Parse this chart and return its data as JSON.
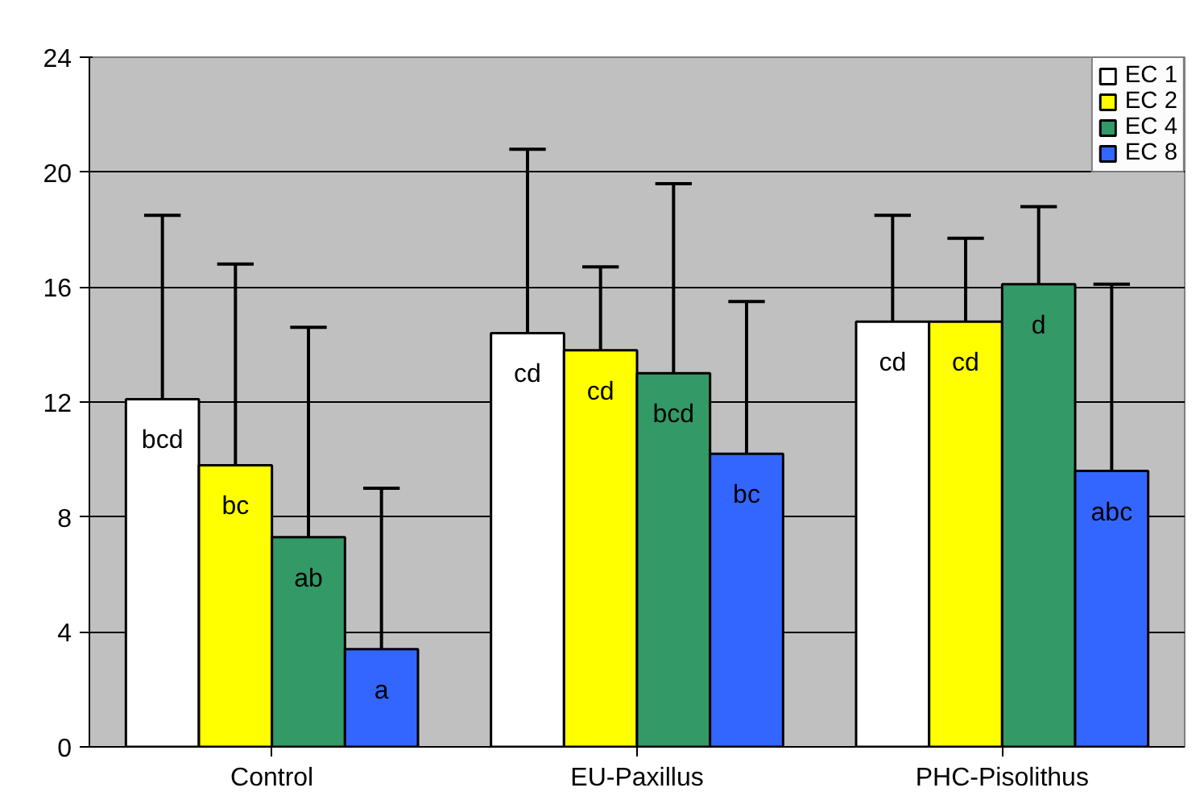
{
  "chart_data": {
    "type": "bar",
    "categories": [
      "Control",
      "EU-Paxillus",
      "PHC-Pisolithus"
    ],
    "series": [
      {
        "name": "EC 1",
        "color": "#ffffff",
        "values": [
          12.1,
          14.4,
          14.8
        ],
        "errors": [
          [
            12.1,
            18.5
          ],
          [
            14.4,
            20.8
          ],
          [
            14.8,
            18.5
          ]
        ],
        "value_labels": [
          "bcd",
          "cd",
          "cd"
        ]
      },
      {
        "name": "EC 2",
        "color": "#ffff00",
        "values": [
          9.8,
          13.8,
          14.8
        ],
        "errors": [
          [
            9.8,
            16.8
          ],
          [
            13.8,
            16.7
          ],
          [
            14.8,
            17.7
          ]
        ],
        "value_labels": [
          "bc",
          "cd",
          "cd"
        ]
      },
      {
        "name": "EC 4",
        "color": "#339966",
        "values": [
          7.3,
          13.0,
          16.1
        ],
        "errors": [
          [
            7.3,
            14.6
          ],
          [
            13.0,
            19.6
          ],
          [
            16.1,
            18.8
          ]
        ],
        "value_labels": [
          "ab",
          "bcd",
          "d"
        ]
      },
      {
        "name": "EC 8",
        "color": "#3366ff",
        "values": [
          3.4,
          10.2,
          9.6
        ],
        "errors": [
          [
            3.4,
            9.0
          ],
          [
            10.2,
            15.5
          ],
          [
            9.6,
            16.1
          ]
        ],
        "value_labels": [
          "a",
          "bc",
          "abc"
        ]
      }
    ],
    "ylim": [
      0,
      24
    ],
    "yticks": [
      0,
      4,
      8,
      12,
      16,
      20,
      24
    ],
    "grid": "y",
    "legend": "top right"
  }
}
